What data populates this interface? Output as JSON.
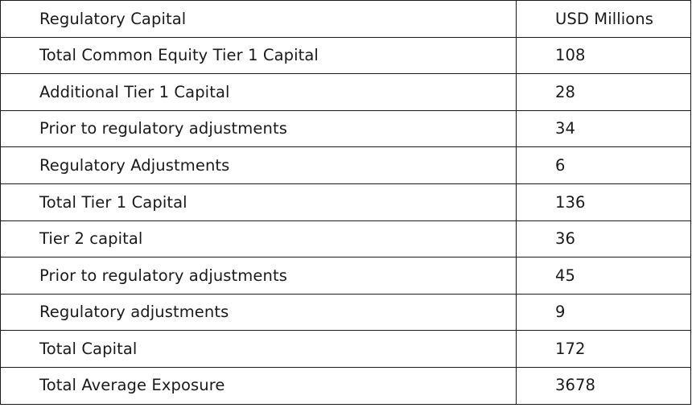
{
  "table": {
    "header": {
      "label": "Regulatory Capital",
      "value": "USD Millions"
    },
    "rows": [
      {
        "label": "Total Common  Equity Tier 1 Capital",
        "value": "108"
      },
      {
        "label": "Additional  Tier 1 Capital",
        "value": "28"
      },
      {
        "label": "Prior to  regulatory  adjustments",
        "value": "34"
      },
      {
        "label": "Regulatory  Adjustments",
        "value": "6"
      },
      {
        "label": "Total Tier 1 Capital",
        "value": "136"
      },
      {
        "label": "Tier 2 capital",
        "value": "36"
      },
      {
        "label": "Prior to  regulatory  adjustments",
        "value": "45"
      },
      {
        "label": "Regulatory  adjustments",
        "value": "9"
      },
      {
        "label": "Total Capital",
        "value": "172"
      },
      {
        "label": "Total Average  Exposure",
        "value": "3678"
      }
    ]
  }
}
